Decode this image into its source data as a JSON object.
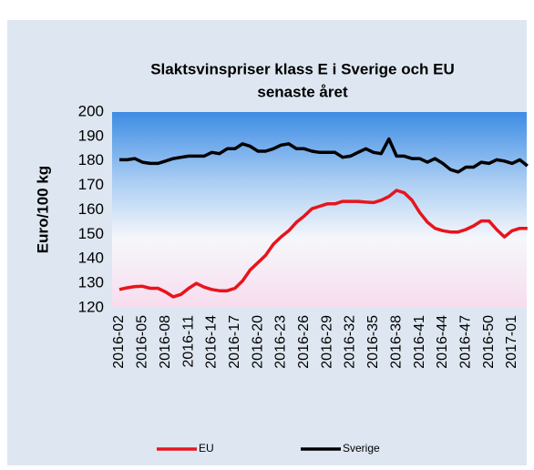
{
  "chart_data": {
    "type": "line",
    "title": [
      "Slaktsvinspriser klass E i Sverige och EU",
      "senaste året"
    ],
    "y_label": "Euro/100 kg",
    "categories": [
      "2016-02",
      null,
      null,
      "2016-05",
      null,
      null,
      "2016-08",
      null,
      null,
      "2016-11",
      null,
      null,
      "2016-14",
      null,
      null,
      "2016-17",
      null,
      null,
      "2016-20",
      null,
      null,
      "2016-23",
      null,
      null,
      "2016-26",
      null,
      null,
      "2016-29",
      null,
      null,
      "2016-32",
      null,
      null,
      "2016-35",
      null,
      null,
      "2016-38",
      null,
      null,
      "2016-41",
      null,
      null,
      "2016-44",
      null,
      null,
      "2016-47",
      null,
      null,
      "2016-50",
      null,
      null,
      "2017-01",
      null,
      null
    ],
    "series": [
      {
        "name": "EU",
        "color": "#e8141c",
        "values": [
          127.5,
          128.2,
          128.7,
          128.8,
          128,
          128,
          126.5,
          124.5,
          125.5,
          128,
          130,
          128.5,
          127.5,
          127,
          127,
          128,
          131,
          135.5,
          138.5,
          141.5,
          146,
          149,
          151.5,
          155,
          157.5,
          160.5,
          161.5,
          162.5,
          162.5,
          163.5,
          163.5,
          163.5,
          163.2,
          163,
          164,
          165.5,
          168,
          167,
          164,
          159,
          155,
          152.5,
          151.5,
          151,
          151,
          152,
          153.5,
          155.5,
          155.5,
          152,
          149,
          151.5,
          152.5,
          152.5
        ]
      },
      {
        "name": "Sverige",
        "color": "#000000",
        "values": [
          180.5,
          180.5,
          181,
          179.5,
          179,
          179,
          180,
          181,
          181.5,
          182,
          182,
          182,
          183.5,
          183,
          185,
          185,
          187,
          186,
          184,
          184,
          185,
          186.5,
          187,
          185,
          185,
          184,
          183.5,
          183.5,
          183.5,
          181.5,
          182,
          183.5,
          185,
          183.5,
          183,
          189,
          182,
          182,
          181,
          181,
          179.5,
          181,
          179,
          176.5,
          175.5,
          177.5,
          177.5,
          179.5,
          179,
          180.5,
          180,
          179,
          180.5,
          178
        ]
      }
    ],
    "ylim": [
      120,
      200
    ],
    "yticks": [
      120,
      130,
      140,
      150,
      160,
      170,
      180,
      190,
      200
    ],
    "grid": false,
    "legend": "bottom"
  }
}
